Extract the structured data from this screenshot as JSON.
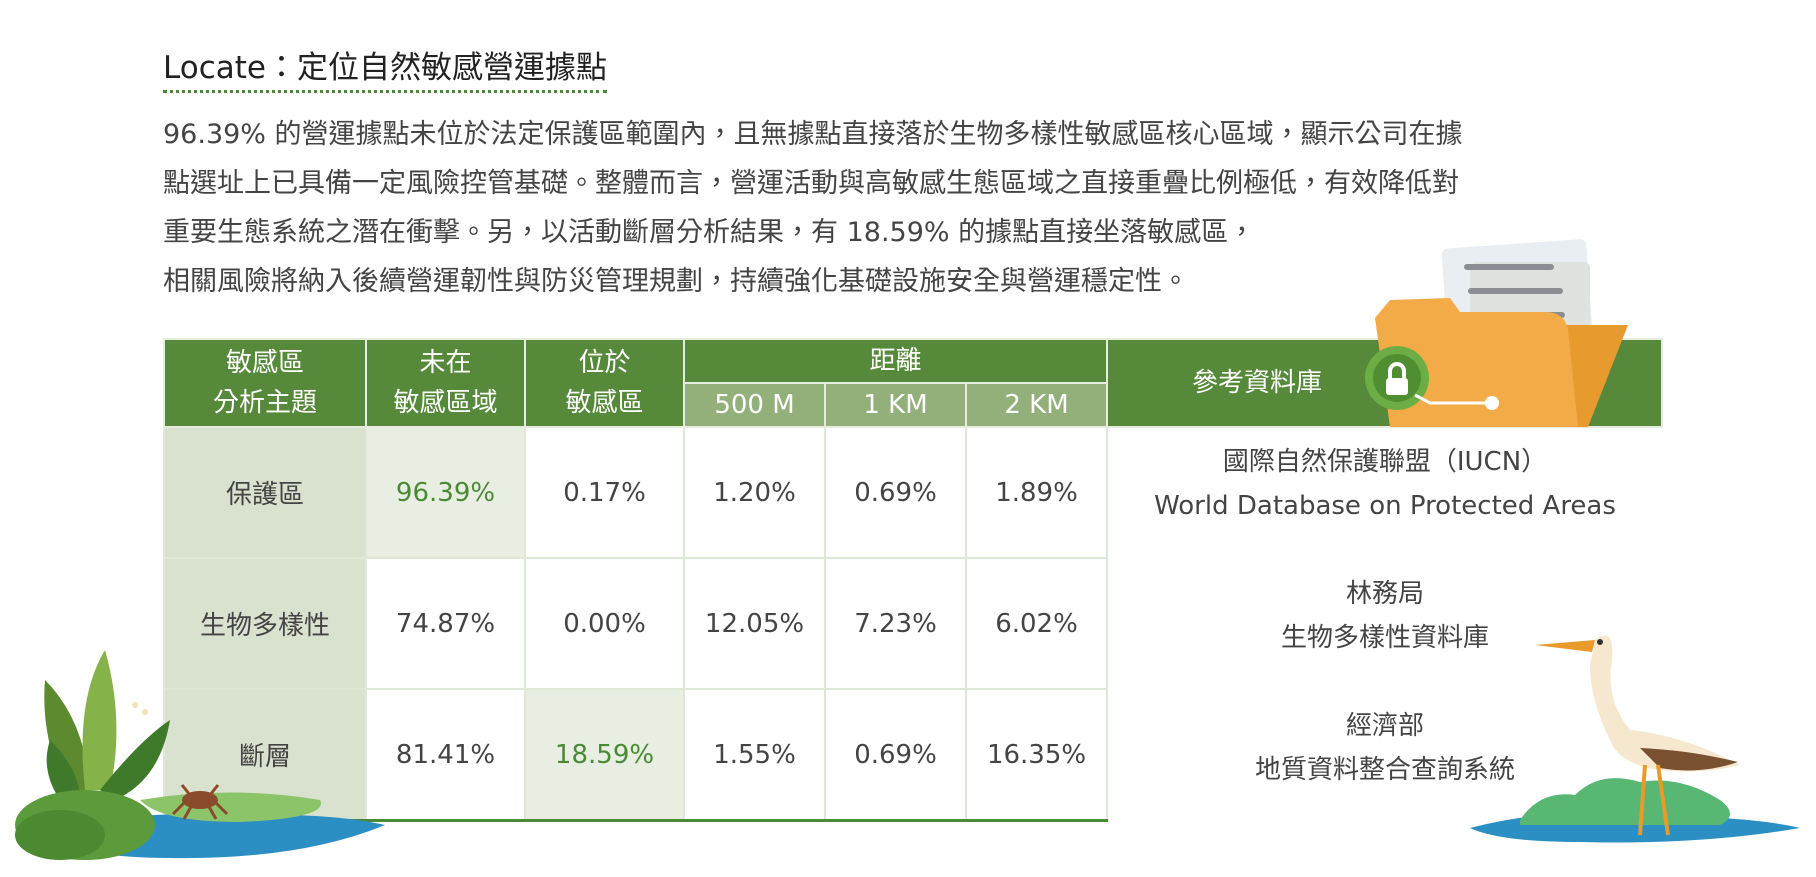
{
  "header": {
    "title": "Locate：定位自然敏感營運據點"
  },
  "paragraph": [
    "96.39% 的營運據點未位於法定保護區範圍內，且無據點直接落於生物多樣性敏感區核心區域，顯示公司在據",
    "點選址上已具備一定風險控管基礎。整體而言，營運活動與高敏感生態區域之直接重疊比例極低，有效降低對",
    "重要生態系統之潛在衝擊。另，以活動斷層分析結果，有 18.59% 的據點直接坐落敏感區，",
    "相關風險將納入後續營運韌性與防災管理規劃，持續強化基礎設施安全與營運穩定性。"
  ],
  "table": {
    "headers": {
      "topic": [
        "敏感區",
        "分析主題"
      ],
      "outside": [
        "未在",
        "敏感區域"
      ],
      "inside": [
        "位於",
        "敏感區"
      ],
      "distance": "距離",
      "distances": [
        "500 M",
        "1 KM",
        "2 KM"
      ],
      "reference": "參考資料庫"
    },
    "rows": [
      [
        "保護區",
        "96.39%",
        "0.17%",
        "1.20%",
        "0.69%",
        "1.89%"
      ],
      [
        "生物多樣性",
        "74.87%",
        "0.00%",
        "12.05%",
        "7.23%",
        "6.02%"
      ],
      [
        "斷層",
        "81.41%",
        "18.59%",
        "1.55%",
        "0.69%",
        "16.35%"
      ]
    ],
    "references": [
      [
        "國際自然保護聯盟（IUCN）",
        "World Database on Protected Areas"
      ],
      [
        "林務局",
        "生物多樣性資料庫"
      ],
      [
        "經濟部",
        "地質資料整合查詢系統"
      ]
    ]
  }
}
